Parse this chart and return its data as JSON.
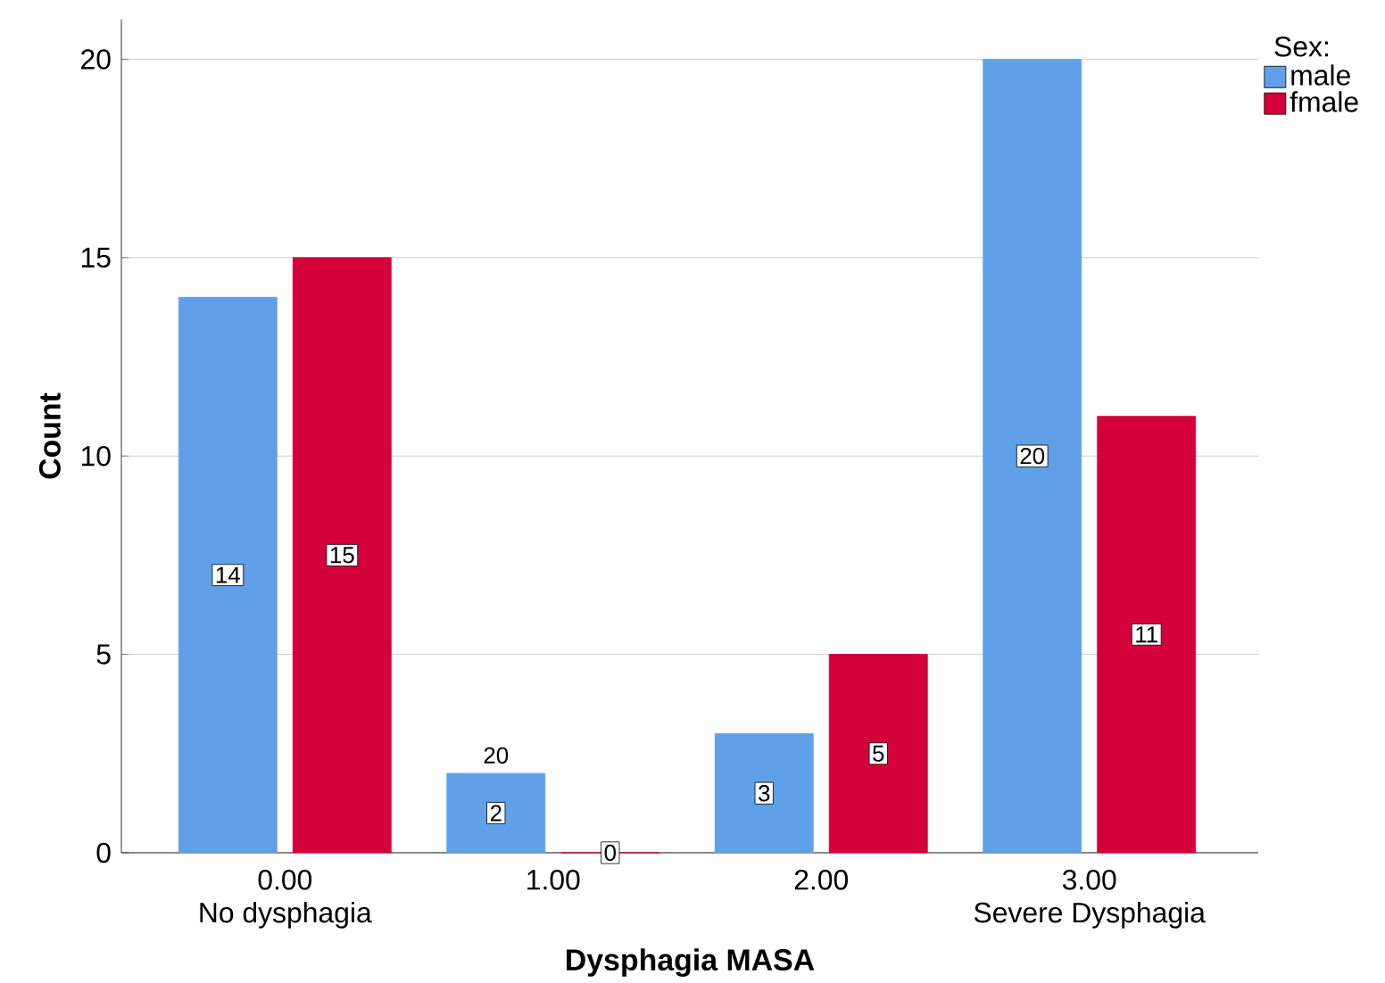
{
  "chart_data": {
    "type": "bar",
    "xlabel": "Dysphagia MASA",
    "ylabel": "Count",
    "legend_title": "Sex:",
    "categories": [
      "0.00",
      "1.00",
      "2.00",
      "3.00"
    ],
    "series": [
      {
        "name": "male",
        "color": "#5fa0e8",
        "values": [
          14,
          2,
          3,
          20
        ]
      },
      {
        "name": "fmale",
        "color": "#d4003a",
        "values": [
          15,
          0,
          5,
          11
        ]
      }
    ],
    "ylim": [
      0,
      21
    ],
    "yticks": [
      0,
      5,
      10,
      15,
      20
    ],
    "grid": "y",
    "legend": "top right",
    "data_labels": true,
    "annotations": [
      "No dysphagia",
      "Severe Dysphagia",
      {
        "text": "20",
        "x": "1.00",
        "y": 2
      }
    ]
  }
}
